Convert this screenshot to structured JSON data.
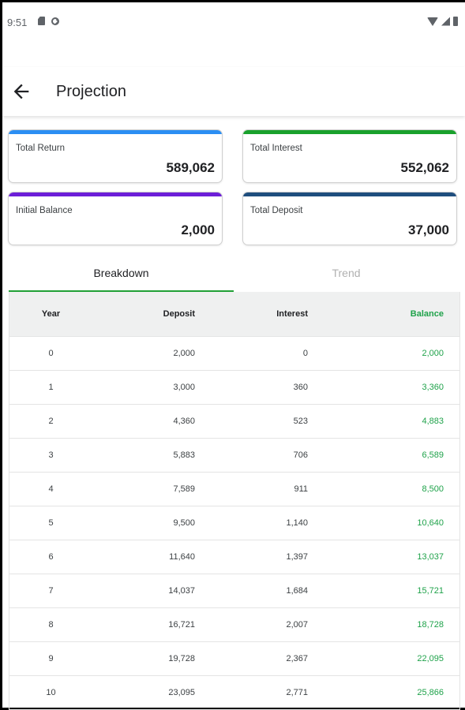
{
  "status_bar": {
    "time": "9:51",
    "left_icons": [
      "sd-card-icon",
      "sync-icon"
    ],
    "right_icons": [
      "wifi-icon",
      "signal-icon",
      "battery-icon"
    ]
  },
  "app_bar": {
    "back_icon": "arrow-back-icon",
    "title": "Projection"
  },
  "summary": {
    "total_return": {
      "label": "Total Return",
      "value": "589,062",
      "accent": "#2b8ef3"
    },
    "total_interest": {
      "label": "Total Interest",
      "value": "552,062",
      "accent": "#19a12c"
    },
    "initial_balance": {
      "label": "Initial Balance",
      "value": "2,000",
      "accent": "#6d1fd8"
    },
    "total_deposit": {
      "label": "Total Deposit",
      "value": "37,000",
      "accent": "#1f4e7e"
    }
  },
  "tabs": [
    {
      "label": "Breakdown",
      "active": true
    },
    {
      "label": "Trend",
      "active": false
    }
  ],
  "table": {
    "headers": [
      "Year",
      "Deposit",
      "Interest",
      "Balance"
    ],
    "rows": [
      [
        "0",
        "2,000",
        "0",
        "2,000"
      ],
      [
        "1",
        "3,000",
        "360",
        "3,360"
      ],
      [
        "2",
        "4,360",
        "523",
        "4,883"
      ],
      [
        "3",
        "5,883",
        "706",
        "6,589"
      ],
      [
        "4",
        "7,589",
        "911",
        "8,500"
      ],
      [
        "5",
        "9,500",
        "1,140",
        "10,640"
      ],
      [
        "6",
        "11,640",
        "1,397",
        "13,037"
      ],
      [
        "7",
        "14,037",
        "1,684",
        "15,721"
      ],
      [
        "8",
        "16,721",
        "2,007",
        "18,728"
      ],
      [
        "9",
        "19,728",
        "2,367",
        "22,095"
      ],
      [
        "10",
        "23,095",
        "2,771",
        "25,866"
      ]
    ]
  },
  "colors": {
    "balance": "#1fa24a",
    "tab_indicator": "#21a036",
    "header_bg": "#eff0f0"
  }
}
